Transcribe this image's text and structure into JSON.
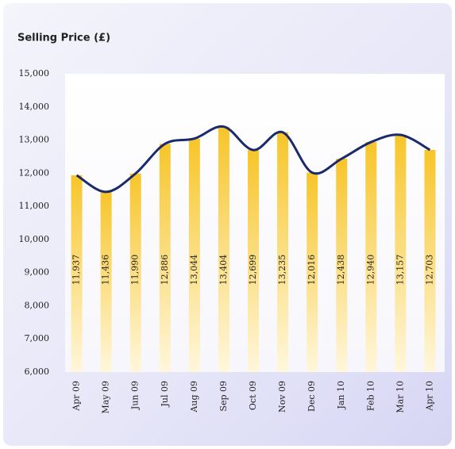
{
  "chart_data": {
    "type": "bar",
    "title": "Selling Price (£)",
    "categories": [
      "Apr 09",
      "May 09",
      "Jun 09",
      "Jul 09",
      "Aug 09",
      "Sep 09",
      "Oct 09",
      "Nov 09",
      "Dec 09",
      "Jan 10",
      "Feb 10",
      "Mar 10",
      "Apr 10"
    ],
    "values": [
      11937,
      11436,
      11990,
      12886,
      13044,
      13404,
      12699,
      13235,
      12016,
      12438,
      12940,
      13157,
      12703
    ],
    "value_labels": [
      "11,937",
      "11,436",
      "11,990",
      "12,886",
      "13,044",
      "13,404",
      "12,699",
      "13,235",
      "12,016",
      "12,438",
      "12,940",
      "13,157",
      "12,703"
    ],
    "color": "#f7c52a",
    "line_color": "#1b2a6b",
    "ylim": [
      6000,
      15000
    ],
    "yticks": [
      {
        "value": 6000,
        "label": "6,000"
      },
      {
        "value": 7000,
        "label": "7,000"
      },
      {
        "value": 8000,
        "label": "8,000"
      },
      {
        "value": 9000,
        "label": "9,000"
      },
      {
        "value": 10000,
        "label": "10,000"
      },
      {
        "value": 11000,
        "label": "11,000"
      },
      {
        "value": 12000,
        "label": "12,000"
      },
      {
        "value": 13000,
        "label": "13,000"
      },
      {
        "value": 14000,
        "label": "14,000"
      },
      {
        "value": 15000,
        "label": "15,000"
      }
    ],
    "grid": false
  }
}
